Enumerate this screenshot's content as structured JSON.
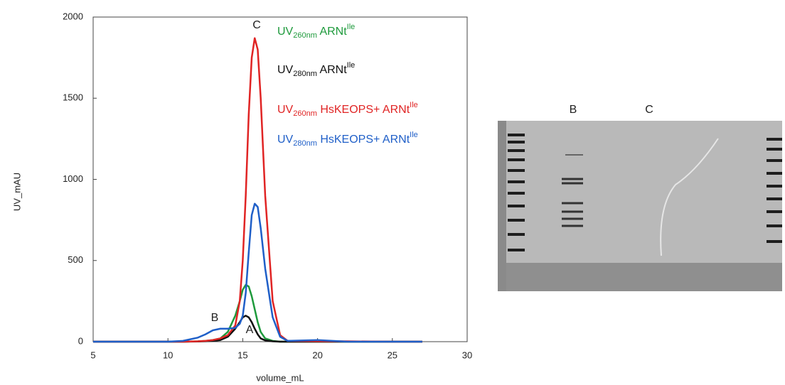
{
  "chart_data": {
    "type": "line",
    "x_label": "volume_mL",
    "y_label": "UV_mAU",
    "xlim": [
      5,
      30
    ],
    "xticks": [
      5,
      10,
      15,
      20,
      25,
      30
    ],
    "ylim": [
      0,
      2000
    ],
    "yticks": [
      0,
      500,
      1000,
      1500,
      2000
    ],
    "annotations": [
      "A",
      "B",
      "C"
    ],
    "x": [
      5,
      10,
      11,
      12,
      12.5,
      13,
      13.5,
      14,
      14.5,
      14.8,
      15,
      15.2,
      15.4,
      15.6,
      15.8,
      16,
      16.2,
      16.5,
      17,
      17.5,
      18,
      20,
      22,
      25,
      27
    ],
    "series": [
      {
        "name": [
          "UV",
          "260nm",
          " ARNt",
          "Ile"
        ],
        "color": "#1e9a3c",
        "values": [
          0,
          0,
          0,
          2,
          5,
          10,
          20,
          60,
          160,
          250,
          320,
          350,
          340,
          280,
          200,
          120,
          60,
          20,
          5,
          0,
          0,
          0,
          0,
          0,
          0
        ]
      },
      {
        "name": [
          "UV",
          "280nm",
          " ARNt",
          "Ile"
        ],
        "color": "#111111",
        "values": [
          0,
          0,
          0,
          1,
          3,
          5,
          10,
          30,
          80,
          120,
          150,
          160,
          150,
          120,
          80,
          45,
          20,
          8,
          2,
          0,
          0,
          0,
          0,
          0,
          0
        ]
      },
      {
        "name": [
          "UV",
          "260nm",
          " HsKEOPS+ ARNt",
          "Ile"
        ],
        "color": "#e02424",
        "values": [
          0,
          0,
          0,
          2,
          5,
          10,
          20,
          40,
          100,
          250,
          500,
          900,
          1400,
          1750,
          1870,
          1800,
          1500,
          900,
          250,
          40,
          5,
          3,
          2,
          0,
          0
        ]
      },
      {
        "name": [
          "UV",
          "280nm",
          " HsKEOPS+ ARNt",
          "Ile"
        ],
        "color": "#1f5fc8",
        "values": [
          0,
          0,
          5,
          25,
          45,
          70,
          80,
          80,
          85,
          110,
          160,
          300,
          550,
          780,
          850,
          830,
          700,
          450,
          150,
          30,
          5,
          10,
          0,
          0,
          0
        ]
      }
    ]
  },
  "gel": {
    "lane_labels": [
      "B",
      "C"
    ]
  }
}
